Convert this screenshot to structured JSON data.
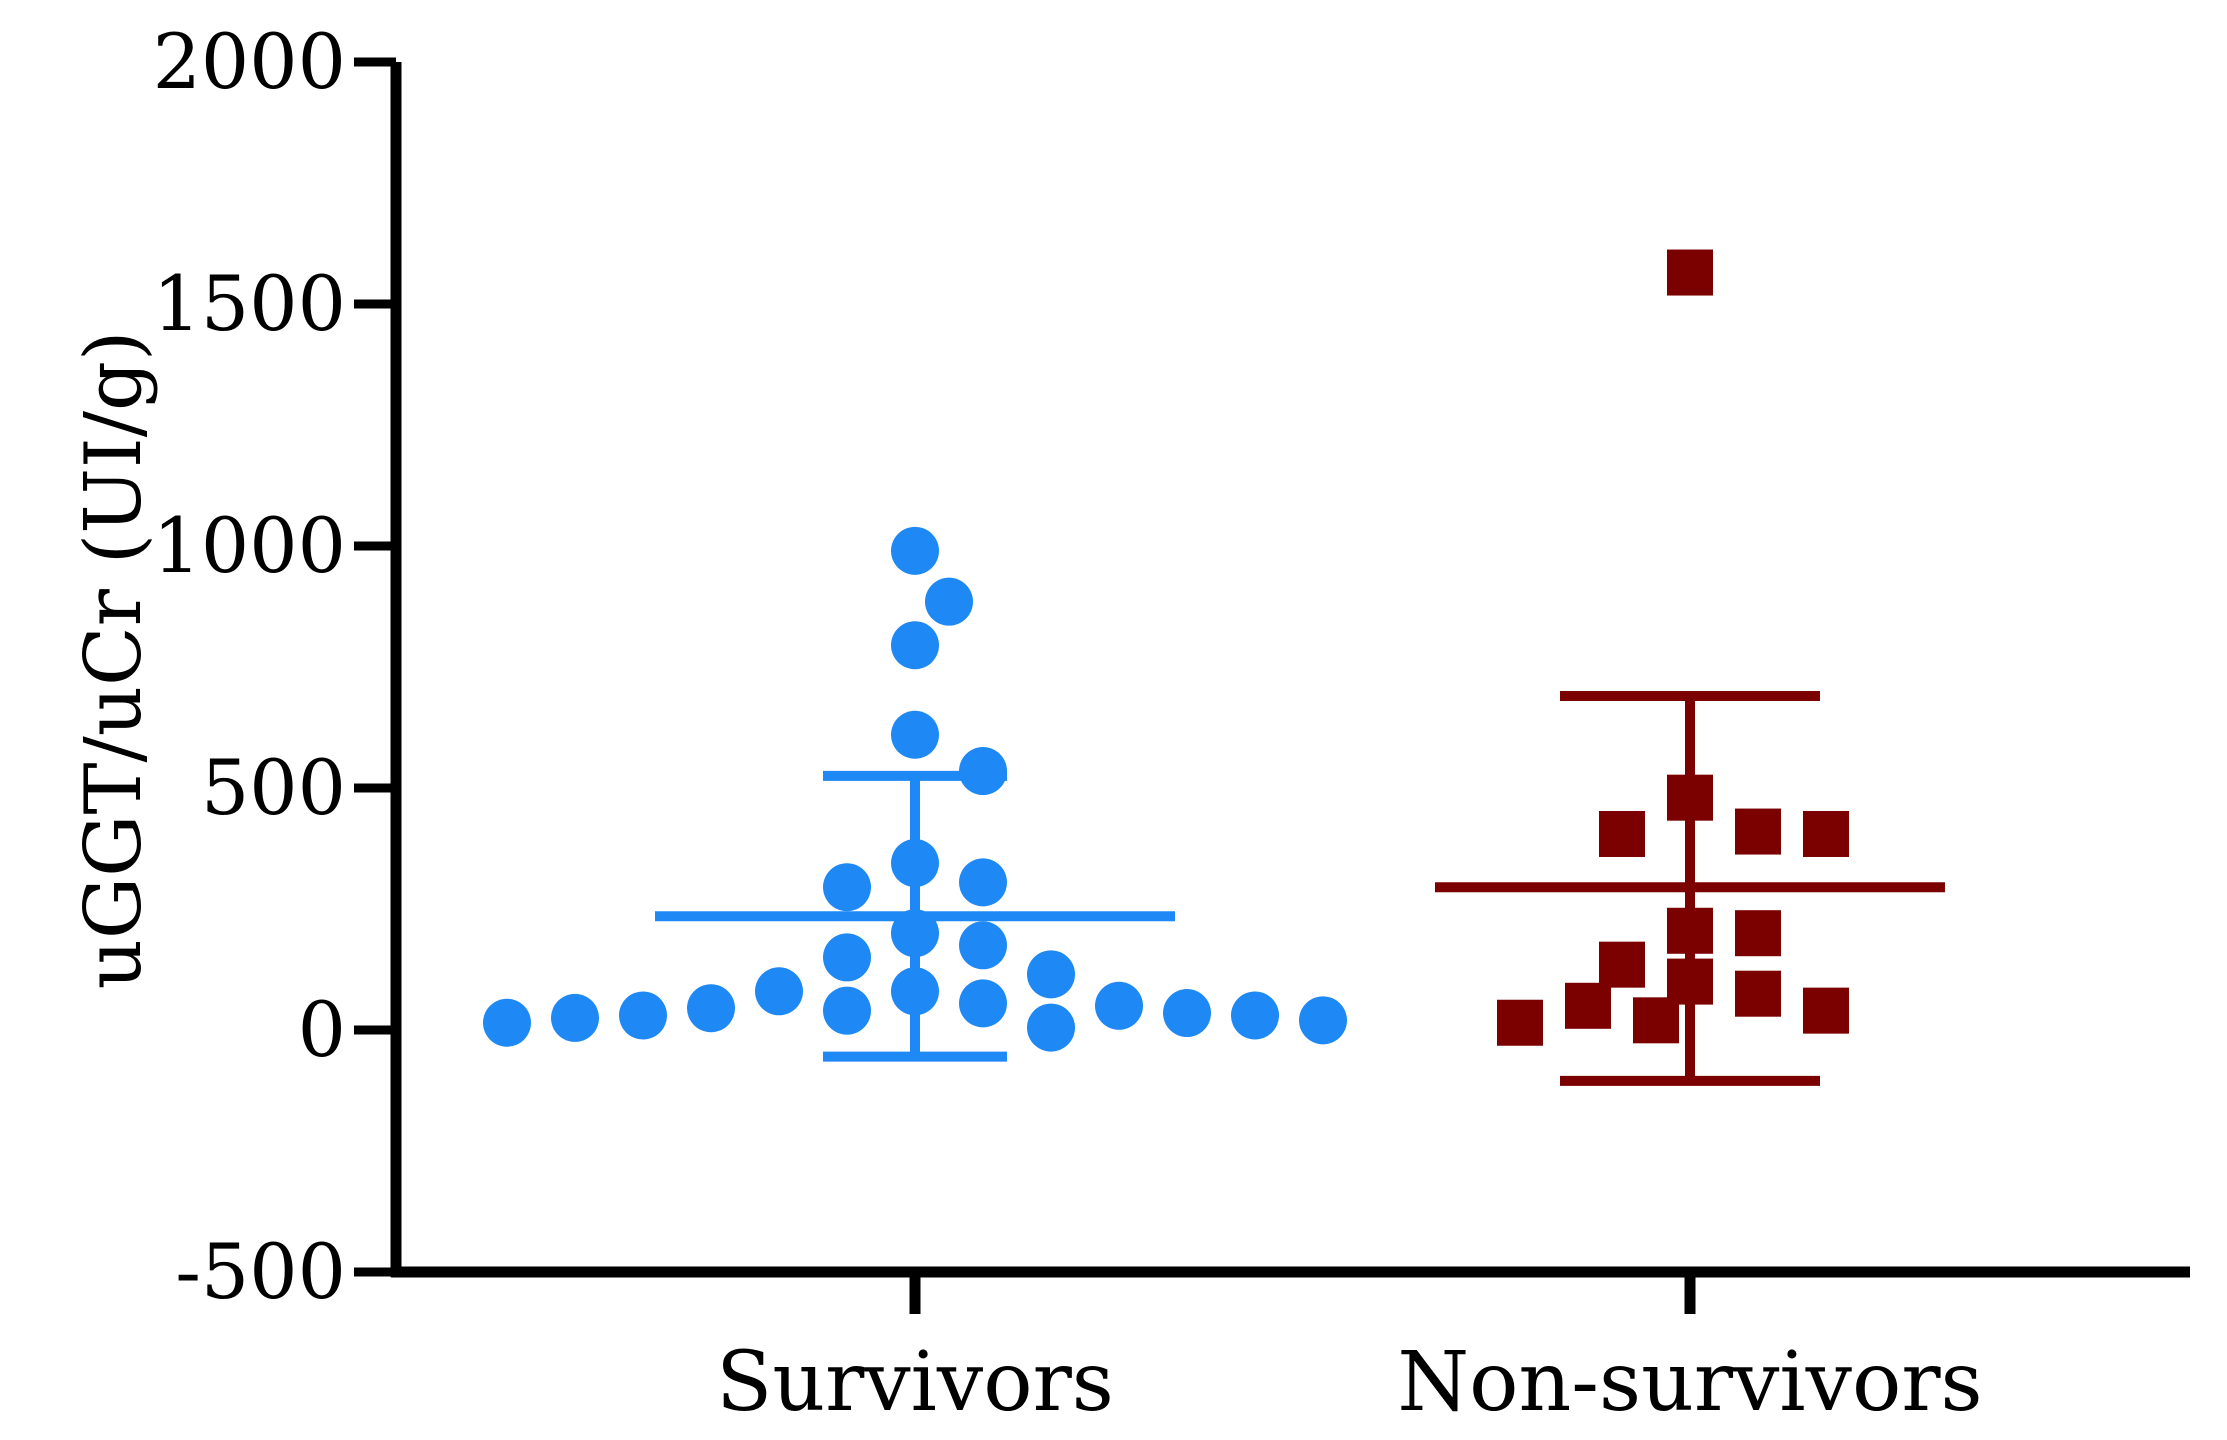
{
  "chart_data": {
    "type": "scatter",
    "ylabel": "uGGT/uCr (UI/g)",
    "ylim": [
      -500,
      2000
    ],
    "yticks": [
      -500,
      0,
      500,
      1000,
      1500,
      2000
    ],
    "categories": [
      "Survivors",
      "Non-survivors"
    ],
    "series": [
      {
        "category": "Survivors",
        "marker": "circle",
        "color": "#1E88F5",
        "values": [
          990,
          885,
          795,
          610,
          535,
          345,
          305,
          295,
          200,
          175,
          150,
          115,
          80,
          80,
          55,
          50,
          45,
          40,
          35,
          30,
          30,
          25,
          20,
          15,
          5
        ],
        "mean": 235,
        "sd_low": -55,
        "sd_high": 525
      },
      {
        "category": "Non-survivors",
        "marker": "square",
        "color": "#7B0000",
        "values": [
          1565,
          480,
          410,
          405,
          405,
          205,
          200,
          135,
          100,
          75,
          50,
          40,
          20,
          15
        ],
        "mean": 295,
        "sd_low": -105,
        "sd_high": 690
      }
    ]
  }
}
